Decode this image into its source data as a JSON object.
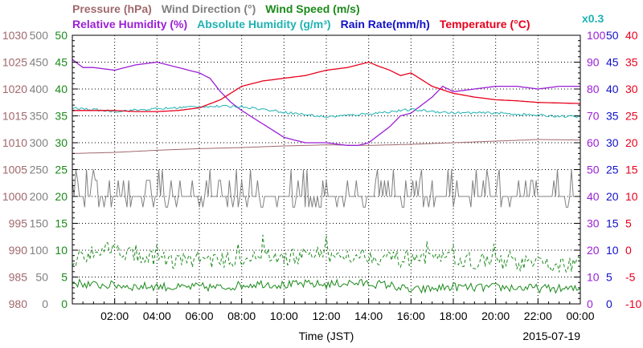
{
  "chart_data": {
    "type": "line",
    "colors": {
      "pressure": "#a0686c",
      "wind_direction": "#808080",
      "wind_speed": "#1a8a1a",
      "relative_humidity": "#9b1fd6",
      "absolute_humidity": "#20b2b2",
      "rain_rate": "#1010c8",
      "temperature": "#e8001c"
    },
    "legend": {
      "row1": [
        {
          "key": "pressure",
          "text": "Pressure (hPa)"
        },
        {
          "key": "wind_direction",
          "text": "Wind Direction (°)"
        },
        {
          "key": "wind_speed",
          "text": "Wind Speed (m/s)"
        }
      ],
      "row2": [
        {
          "key": "relative_humidity",
          "text": "Relative Humidity (%)"
        },
        {
          "key": "absolute_humidity",
          "text": "Absolute Humidity (g/m³)"
        },
        {
          "key": "rain_rate",
          "text": "Rain Rate(mm/h)"
        },
        {
          "key": "temperature",
          "text": "Temperature (°C)"
        }
      ],
      "abs_multiplier": "x0.3"
    },
    "xlabel": "Time (JST)",
    "date": "2015-07-19",
    "x_ticks": [
      "02:00",
      "04:00",
      "06:00",
      "08:00",
      "10:00",
      "12:00",
      "14:00",
      "16:00",
      "18:00",
      "20:00",
      "22:00",
      "00:00"
    ],
    "x_range_hours": [
      0,
      24
    ],
    "axes": {
      "pressure": {
        "ticks": [
          "1030",
          "1025",
          "1020",
          "1015",
          "1010",
          "1005",
          "1000",
          "995",
          "990",
          "985",
          "980"
        ],
        "range": [
          980,
          1030
        ]
      },
      "wind_direction": {
        "ticks": [
          "500",
          "450",
          "400",
          "350",
          "300",
          "250",
          "200",
          "150",
          "100",
          "50",
          "0"
        ],
        "range": [
          0,
          500
        ]
      },
      "wind_speed": {
        "ticks": [
          "50",
          "45",
          "40",
          "35",
          "30",
          "25",
          "20",
          "15",
          "10",
          "5",
          "0"
        ],
        "range": [
          0,
          50
        ]
      },
      "relative_humidity": {
        "ticks": [
          "100",
          "90",
          "80",
          "70",
          "60",
          "50",
          "40",
          "30",
          "20",
          "10",
          "0"
        ],
        "range": [
          0,
          100
        ]
      },
      "rain_rate": {
        "ticks": [
          "50",
          "45",
          "40",
          "35",
          "30",
          "25",
          "20",
          "15",
          "10",
          "5",
          "0"
        ],
        "range": [
          0,
          50
        ]
      },
      "temperature": {
        "ticks": [
          "40",
          "35",
          "30",
          "25",
          "20",
          "15",
          "10",
          "5",
          "0",
          "-5",
          "-10"
        ],
        "range": [
          -10,
          40
        ]
      }
    },
    "series": [
      {
        "key": "pressure",
        "style": "solid",
        "x": [
          0,
          2,
          4,
          6,
          8,
          10,
          12,
          14,
          16,
          18,
          20,
          22,
          24
        ],
        "y": [
          1008.0,
          1008.2,
          1008.6,
          1008.9,
          1009.1,
          1009.4,
          1009.6,
          1009.5,
          1009.7,
          1010.0,
          1010.3,
          1010.6,
          1010.5
        ]
      },
      {
        "key": "wind_direction",
        "style": "solid",
        "jitter": true,
        "x": [
          0,
          24
        ],
        "y": [
          200,
          200
        ],
        "spikes": [
          230,
          180
        ]
      },
      {
        "key": "wind_speed_avg",
        "series_of": "wind_speed",
        "style": "solid",
        "noise": 0.8,
        "x": [
          0,
          1,
          2,
          3,
          4,
          5,
          6,
          7,
          8,
          9,
          10,
          11,
          12,
          13,
          14,
          15,
          16,
          17,
          18,
          19,
          20,
          21,
          22,
          23,
          24
        ],
        "y": [
          4.0,
          3.5,
          3.5,
          3.2,
          3.3,
          3.0,
          3.2,
          3.0,
          3.5,
          3.8,
          3.5,
          3.7,
          3.6,
          3.9,
          3.8,
          3.5,
          2.5,
          2.8,
          3.2,
          3.0,
          3.1,
          3.0,
          2.9,
          2.8,
          2.7
        ]
      },
      {
        "key": "wind_speed_gust",
        "series_of": "wind_speed",
        "style": "dashed",
        "noise": 1.5,
        "x": [
          0,
          1,
          2,
          3,
          4,
          5,
          6,
          7,
          8,
          9,
          10,
          11,
          12,
          13,
          14,
          15,
          16,
          17,
          18,
          19,
          20,
          21,
          22,
          23,
          24
        ],
        "y": [
          8.0,
          10.0,
          10.5,
          9.0,
          8.5,
          8.0,
          8.5,
          8.0,
          8.5,
          9.0,
          8.5,
          9.0,
          8.8,
          9.2,
          9.0,
          8.5,
          8.0,
          8.0,
          8.5,
          8.0,
          7.8,
          7.5,
          7.5,
          7.2,
          7.5
        ]
      },
      {
        "key": "relative_humidity",
        "style": "solid",
        "x": [
          0,
          0.5,
          1,
          2,
          3,
          4,
          5,
          6,
          6.5,
          7,
          7.5,
          8,
          9,
          10,
          11,
          12,
          13,
          13.5,
          14,
          14.5,
          15,
          15.5,
          16,
          17,
          17.5,
          18,
          19,
          20,
          21,
          22,
          23,
          24
        ],
        "y": [
          91,
          88,
          88,
          87,
          89,
          90,
          88,
          86,
          84,
          79,
          75,
          72,
          67,
          62,
          60,
          60,
          59,
          59,
          60,
          63,
          66,
          70,
          71,
          77,
          81,
          79,
          80,
          81,
          81,
          80,
          81,
          81
        ]
      },
      {
        "key": "absolute_humidity",
        "style": "solid",
        "noise": 0.15,
        "x": [
          0,
          2,
          4,
          6,
          8,
          10,
          12,
          14,
          16,
          18,
          20,
          22,
          24
        ],
        "y": [
          24.3,
          23.9,
          24.2,
          24.5,
          24.5,
          23.8,
          23.2,
          23.6,
          24.1,
          23.7,
          23.7,
          23.4,
          23.2
        ]
      },
      {
        "key": "temperature",
        "style": "solid",
        "x": [
          0,
          1,
          2,
          3,
          4,
          5,
          6,
          7,
          8,
          9,
          10,
          11,
          12,
          13,
          14,
          14.5,
          15,
          15.5,
          16,
          17,
          18,
          19,
          20,
          21,
          22,
          23,
          24
        ],
        "y": [
          26,
          26,
          26,
          25.8,
          25.8,
          26,
          26.5,
          28,
          30.5,
          31.5,
          32,
          32.5,
          33.5,
          34,
          35,
          34.2,
          33.5,
          32.5,
          33,
          30.5,
          29.2,
          28.5,
          28,
          27.8,
          27.5,
          27.4,
          27.3
        ]
      },
      {
        "key": "rain_rate",
        "style": "solid",
        "x": [
          0,
          24
        ],
        "y": [
          0,
          0
        ]
      }
    ]
  }
}
